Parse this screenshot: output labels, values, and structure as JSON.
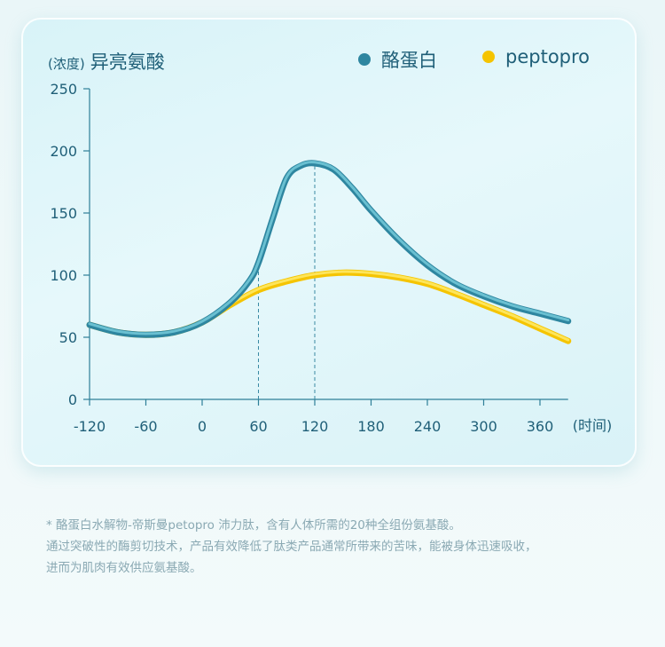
{
  "chart_data": {
    "type": "line",
    "y_unit_label": "(浓度)",
    "title": "异亮氨酸",
    "xlabel": "(时间)",
    "x_ticks": [
      -120,
      -60,
      0,
      60,
      120,
      180,
      240,
      300,
      360
    ],
    "y_ticks": [
      0,
      50,
      100,
      150,
      200,
      250
    ],
    "xlim": [
      -120,
      390
    ],
    "ylim": [
      0,
      250
    ],
    "legend_position": "top-right",
    "series": [
      {
        "name": "酪蛋白",
        "color": "#2e86a0",
        "x": [
          -120,
          -90,
          -60,
          -30,
          0,
          30,
          50,
          60,
          75,
          90,
          105,
          120,
          140,
          160,
          180,
          210,
          240,
          270,
          300,
          330,
          360,
          390
        ],
        "y": [
          60,
          54,
          52,
          54,
          62,
          78,
          95,
          110,
          145,
          178,
          188,
          190,
          185,
          170,
          152,
          128,
          108,
          93,
          83,
          75,
          69,
          63
        ]
      },
      {
        "name": "peptopro",
        "color": "#f5c400",
        "x": [
          -120,
          -90,
          -60,
          -30,
          0,
          30,
          60,
          90,
          120,
          150,
          180,
          210,
          240,
          270,
          300,
          330,
          360,
          390
        ],
        "y": [
          60,
          54,
          52,
          54,
          62,
          76,
          88,
          95,
          100,
          102,
          101,
          98,
          93,
          85,
          76,
          67,
          57,
          47
        ]
      }
    ],
    "reference_lines_x": [
      60,
      120
    ]
  },
  "footnote": {
    "lines": [
      "* 酪蛋白水解物-帝斯曼petopro 沛力肽，含有人体所需的20种全组份氨基酸。",
      "通过突破性的酶剪切技术，产品有效降低了肽类产品通常所带来的苦味，能被身体迅速吸收，",
      "进而为肌肉有效供应氨基酸。"
    ]
  }
}
